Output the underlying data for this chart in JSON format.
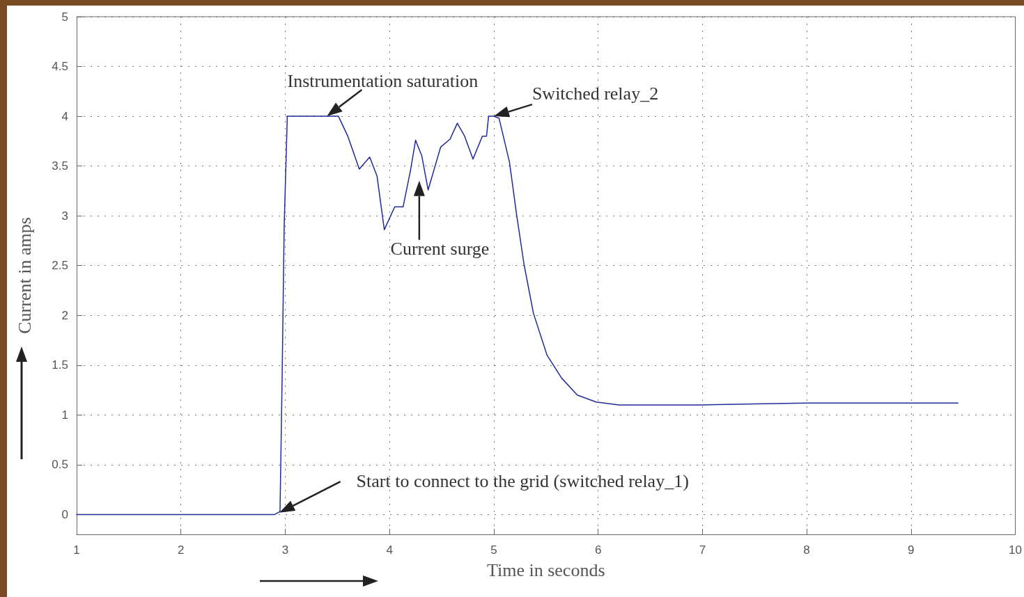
{
  "chart_data": {
    "type": "line",
    "xlabel": "Time in seconds",
    "ylabel": "Current in amps",
    "x": [
      1,
      1.5,
      2,
      2.5,
      2.9,
      2.95,
      2.97,
      2.99,
      3.02,
      3.51,
      3.6,
      3.71,
      3.81,
      3.88,
      3.95,
      4.05,
      4.13,
      4.2,
      4.25,
      4.31,
      4.37,
      4.49,
      4.58,
      4.65,
      4.72,
      4.8,
      4.89,
      4.93,
      4.95,
      5.0,
      5.05,
      5.15,
      5.22,
      5.29,
      5.38,
      5.51,
      5.65,
      5.8,
      5.98,
      6.2,
      6.5,
      7.0,
      7.5,
      8.0,
      8.5,
      9.0,
      9.45
    ],
    "series": [
      {
        "color": "#1f2a9c",
        "values": [
          0,
          0,
          0,
          0,
          0,
          0.03,
          1.35,
          2.9,
          4.0,
          4.0,
          3.8,
          3.47,
          3.59,
          3.4,
          2.86,
          3.09,
          3.09,
          3.45,
          3.76,
          3.6,
          3.26,
          3.69,
          3.77,
          3.93,
          3.8,
          3.57,
          3.8,
          3.8,
          4.0,
          4.0,
          3.98,
          3.54,
          3.0,
          2.51,
          2.02,
          1.6,
          1.37,
          1.2,
          1.13,
          1.1,
          1.1,
          1.1,
          1.11,
          1.12,
          1.12,
          1.12,
          1.12
        ]
      }
    ],
    "xlim": [
      1,
      10
    ],
    "xticks": [
      1,
      2,
      3,
      4,
      5,
      6,
      7,
      8,
      9,
      10
    ],
    "ylim": [
      -0.2,
      5
    ],
    "yticks": [
      0,
      0.5,
      1,
      1.5,
      2,
      2.5,
      3,
      3.5,
      4,
      4.5,
      5
    ],
    "annotations": [
      {
        "text": "Instrumentation saturation",
        "x": 3.4,
        "y": 4.0
      },
      {
        "text": "Switched relay_2",
        "x": 5.0,
        "y": 4.0
      },
      "Current surge",
      "Start to connect to the grid (switched relay_1)"
    ],
    "grid": true,
    "marker": "none",
    "line_style": "solid"
  }
}
